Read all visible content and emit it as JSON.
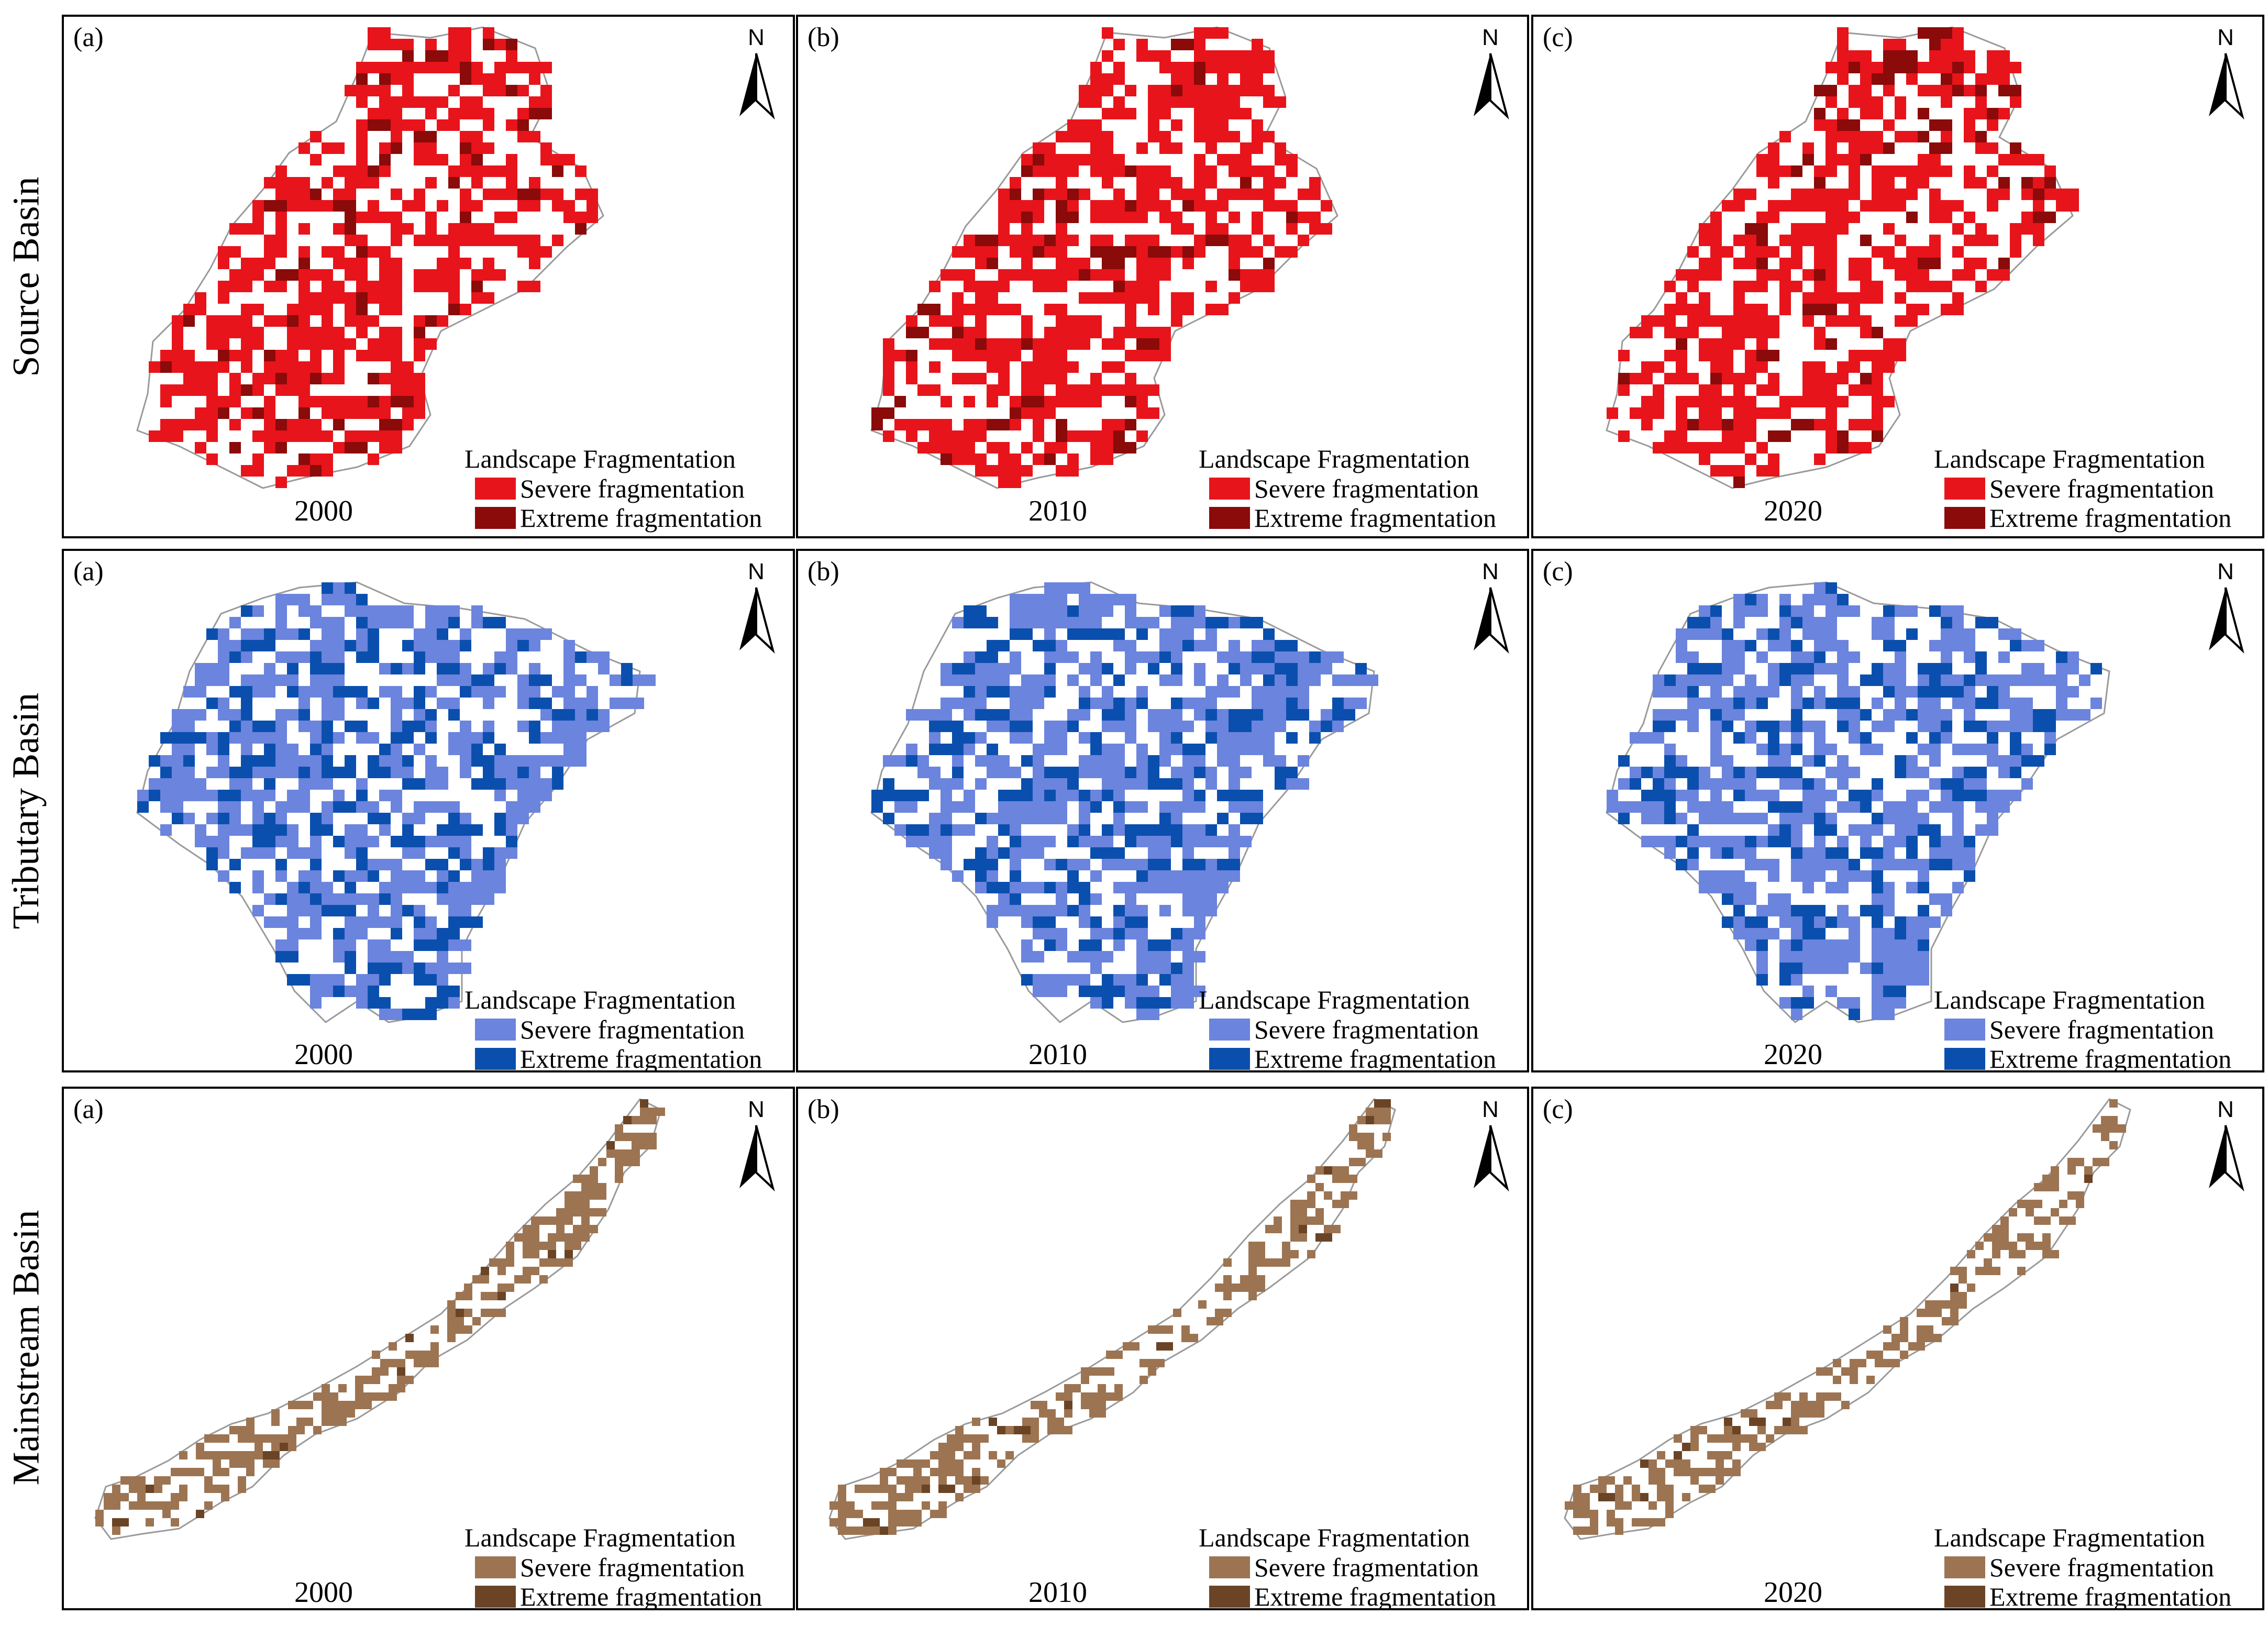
{
  "legend_title": "Landscape Fragmentation",
  "north_label": "N",
  "rows": [
    {
      "label": "Source Basin",
      "colors": {
        "severe": "#e8141b",
        "extreme": "#8b0a0a"
      },
      "panels": [
        {
          "letter": "(a)",
          "year": "2000"
        },
        {
          "letter": "(b)",
          "year": "2010"
        },
        {
          "letter": "(c)",
          "year": "2020"
        }
      ],
      "legend": {
        "severe": "Severe fragmentation",
        "extreme": "Extreme fragmentation"
      }
    },
    {
      "label": "Tributary Basin",
      "colors": {
        "severe": "#6b84dd",
        "extreme": "#0b4fae"
      },
      "panels": [
        {
          "letter": "(a)",
          "year": "2000"
        },
        {
          "letter": "(b)",
          "year": "2010"
        },
        {
          "letter": "(c)",
          "year": "2020"
        }
      ],
      "legend": {
        "severe": "Severe fragmentation",
        "extreme": "Extreme fragmentation"
      }
    },
    {
      "label": "Mainstream Basin",
      "colors": {
        "severe": "#9c7452",
        "extreme": "#6b4426"
      },
      "panels": [
        {
          "letter": "(a)",
          "year": "2000"
        },
        {
          "letter": "(b)",
          "year": "2010"
        },
        {
          "letter": "(c)",
          "year": "2020"
        }
      ],
      "legend": {
        "severe": "Severe fragmentation",
        "extreme": "Extreme fragmentation"
      }
    }
  ]
}
